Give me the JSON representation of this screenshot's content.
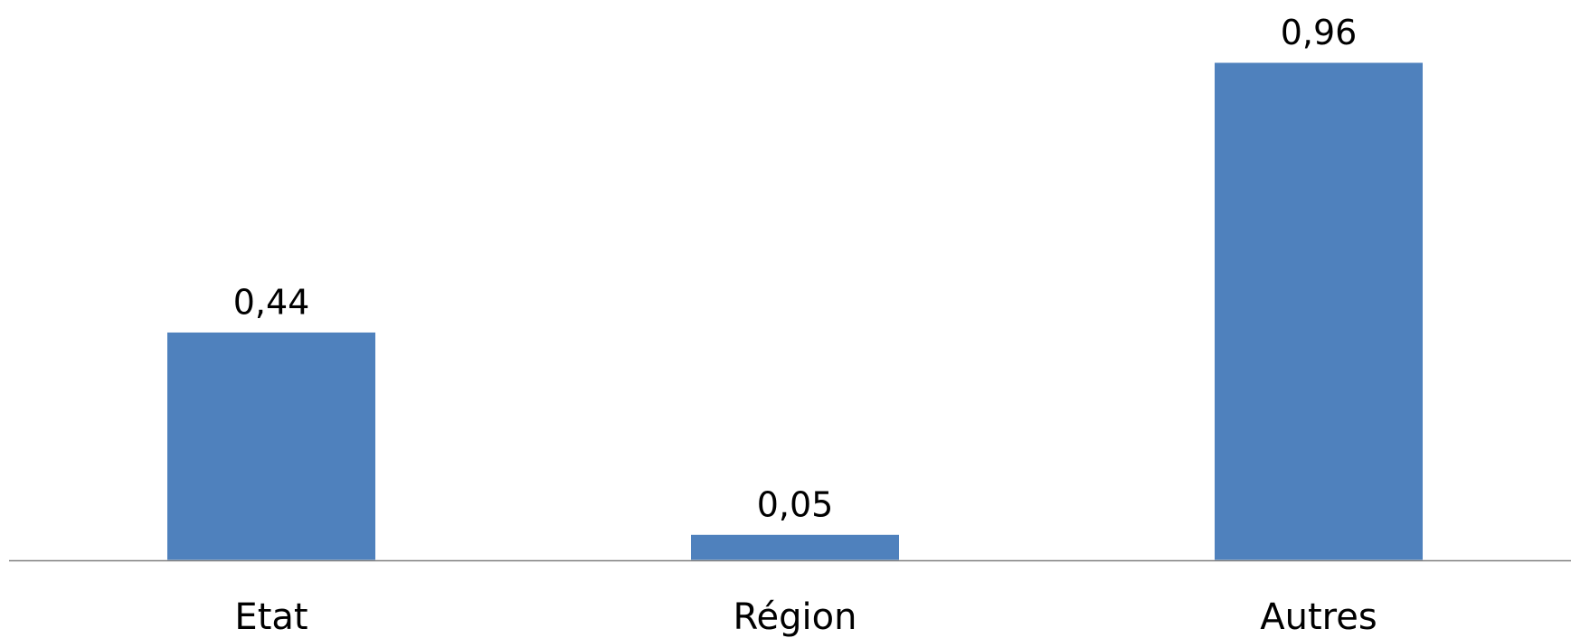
{
  "chart_data": {
    "type": "bar",
    "categories": [
      "Etat",
      "Région",
      "Autres"
    ],
    "series": [
      {
        "values": [
          0.44,
          0.05,
          0.96
        ],
        "value_labels": [
          "0,44",
          "0,05",
          "0,96"
        ],
        "color": "#4F81BD"
      }
    ],
    "title": "",
    "xlabel": "",
    "ylabel": "",
    "ylim": [
      0,
      0.96
    ],
    "grid": false,
    "legend": "none",
    "axis_color": "#808080"
  }
}
